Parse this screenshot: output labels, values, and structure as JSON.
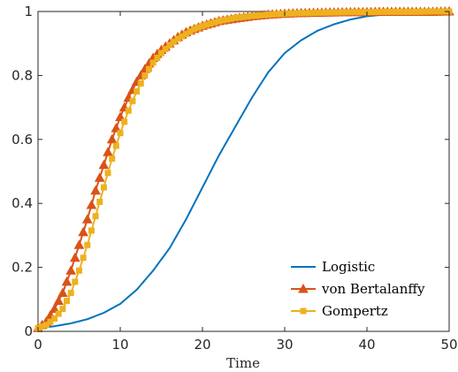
{
  "chart_data": {
    "type": "line",
    "title": "",
    "xlabel": "Time",
    "ylabel": "",
    "xlim": [
      0,
      50
    ],
    "ylim": [
      0,
      1
    ],
    "xticks": [
      0,
      10,
      20,
      30,
      40,
      50
    ],
    "xtick_labels": [
      "0",
      "10",
      "20",
      "30",
      "40",
      "50"
    ],
    "yticks": [
      0,
      0.2,
      0.4,
      0.6,
      0.8,
      1
    ],
    "ytick_labels": [
      "0",
      "0.2",
      "0.4",
      "0.6",
      "0.8",
      "1"
    ],
    "grid": false,
    "legend_position": "bottom-right",
    "series": [
      {
        "name": "Logistic",
        "color": "#0072BD",
        "marker": "none",
        "x": [
          0,
          2,
          4,
          6,
          8,
          10,
          12,
          14,
          16,
          18,
          20,
          22,
          24,
          26,
          28,
          30,
          32,
          34,
          36,
          38,
          40,
          42,
          44,
          46,
          48,
          50
        ],
        "y": [
          0.01,
          0.016,
          0.025,
          0.038,
          0.058,
          0.086,
          0.13,
          0.19,
          0.26,
          0.35,
          0.45,
          0.55,
          0.64,
          0.73,
          0.81,
          0.87,
          0.91,
          0.94,
          0.96,
          0.975,
          0.985,
          0.99,
          0.994,
          0.996,
          0.998,
          0.999
        ]
      },
      {
        "name": "von Bertalanffy",
        "color": "#D95319",
        "marker": "triangle",
        "x": [
          0,
          1,
          2,
          3,
          4,
          5,
          6,
          7,
          8,
          9,
          10,
          11,
          12,
          13,
          14,
          15,
          16,
          17,
          18,
          19,
          20,
          22,
          24,
          26,
          28,
          30,
          32,
          34,
          36,
          38,
          40,
          42,
          44,
          46,
          48,
          50
        ],
        "y": [
          0.01,
          0.03,
          0.07,
          0.12,
          0.19,
          0.27,
          0.35,
          0.44,
          0.52,
          0.6,
          0.67,
          0.73,
          0.78,
          0.82,
          0.855,
          0.88,
          0.9,
          0.92,
          0.935,
          0.945,
          0.955,
          0.97,
          0.978,
          0.985,
          0.99,
          0.993,
          0.995,
          0.996,
          0.997,
          0.998,
          0.998,
          0.999,
          0.999,
          0.999,
          0.999,
          1.0
        ]
      },
      {
        "name": "Gompertz",
        "color": "#EDB120",
        "marker": "square",
        "x": [
          0,
          1,
          2,
          3,
          4,
          5,
          6,
          7,
          8,
          9,
          10,
          11,
          12,
          13,
          14,
          15,
          16,
          17,
          18,
          19,
          20,
          22,
          24,
          26,
          28,
          30,
          32,
          34,
          36,
          38,
          40,
          42,
          44,
          46,
          48,
          50
        ],
        "y": [
          0.01,
          0.02,
          0.04,
          0.07,
          0.12,
          0.19,
          0.27,
          0.36,
          0.45,
          0.54,
          0.62,
          0.69,
          0.75,
          0.8,
          0.84,
          0.87,
          0.895,
          0.915,
          0.93,
          0.945,
          0.955,
          0.97,
          0.98,
          0.986,
          0.99,
          0.993,
          0.995,
          0.996,
          0.997,
          0.998,
          0.998,
          0.999,
          0.999,
          0.999,
          1.0,
          1.0
        ]
      }
    ]
  }
}
